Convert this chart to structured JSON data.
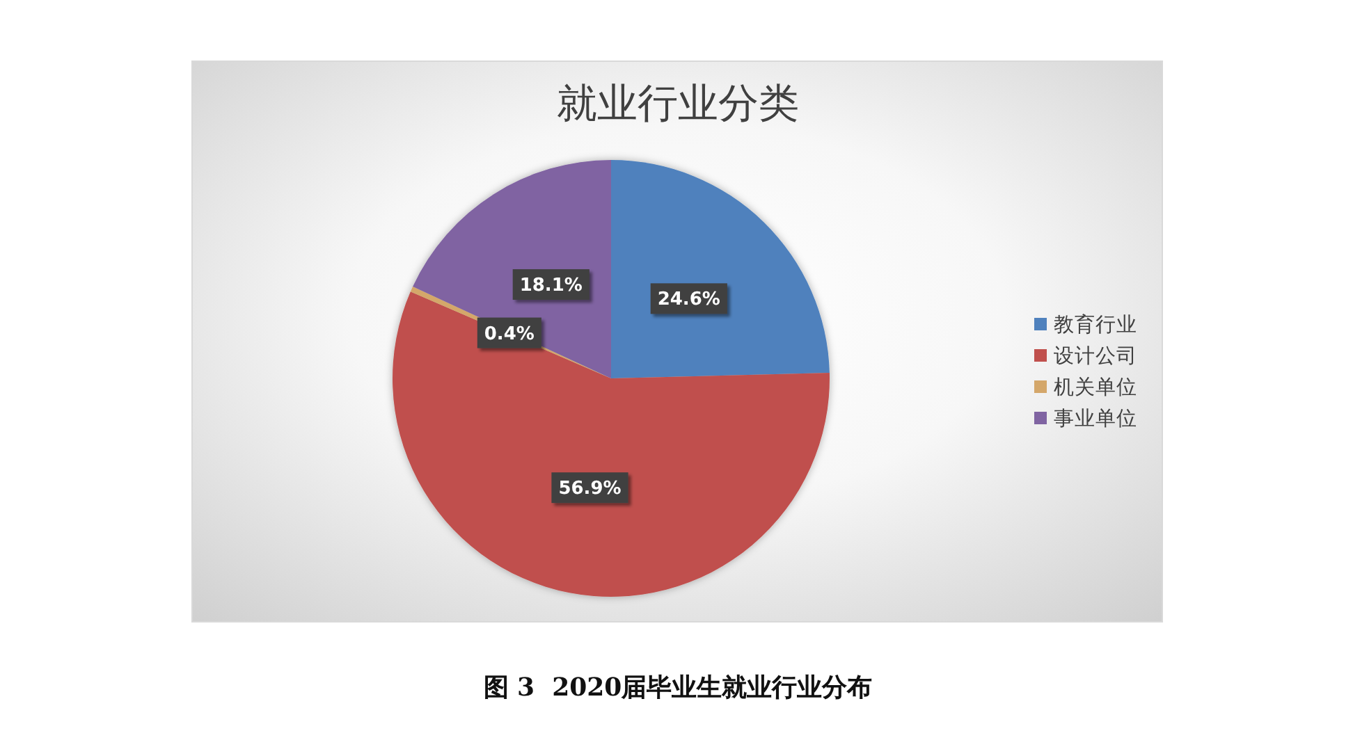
{
  "chart_data": {
    "type": "pie",
    "title": "就业行业分类",
    "categories": [
      "教育行业",
      "设计公司",
      "机关单位",
      "事业单位"
    ],
    "values": [
      24.6,
      56.9,
      0.4,
      18.1
    ],
    "colors": [
      "#4f81bd",
      "#c0504d",
      "#d4a76a",
      "#8064a2"
    ],
    "value_labels": [
      "24.6%",
      "56.9%",
      "0.4%",
      "18.1%"
    ],
    "legend": "right",
    "annotations": [
      "图 3  2020届毕业生就业行业分布"
    ]
  }
}
